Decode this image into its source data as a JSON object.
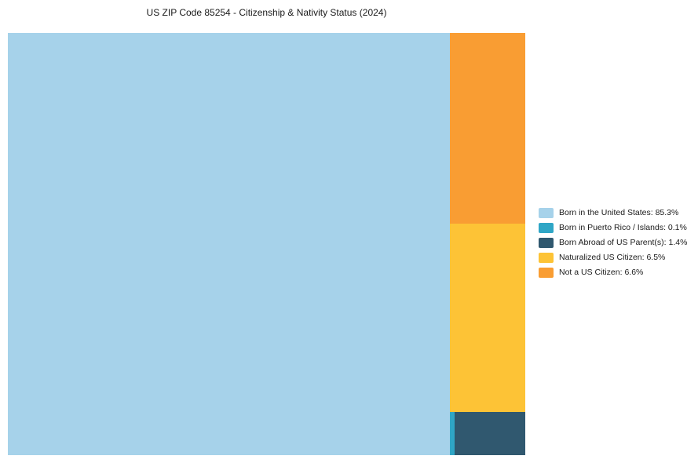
{
  "chart_data": {
    "type": "treemap",
    "title": "US ZIP Code 85254 - Citizenship & Nativity Status (2024)",
    "legend_position": "right",
    "grid": false,
    "series": [
      {
        "id": "born_us",
        "name": "Born in the United States",
        "value": 85.3,
        "color": "#A6D2EA",
        "label": "Born in the United States: 85.3%"
      },
      {
        "id": "born_pr_islands",
        "name": "Born in Puerto Rico / Islands",
        "value": 0.1,
        "color": "#2FA6C6",
        "label": "Born in Puerto Rico / Islands: 0.1%"
      },
      {
        "id": "born_abroad",
        "name": "Born Abroad of US Parent(s)",
        "value": 1.4,
        "color": "#30586F",
        "label": "Born Abroad of US Parent(s): 1.4%"
      },
      {
        "id": "naturalized",
        "name": "Naturalized US Citizen",
        "value": 6.5,
        "color": "#FDC336",
        "label": "Naturalized US Citizen: 6.5%"
      },
      {
        "id": "not_citizen",
        "name": "Not a US Citizen",
        "value": 6.6,
        "color": "#F99D33",
        "label": "Not a US Citizen: 6.6%"
      }
    ]
  }
}
